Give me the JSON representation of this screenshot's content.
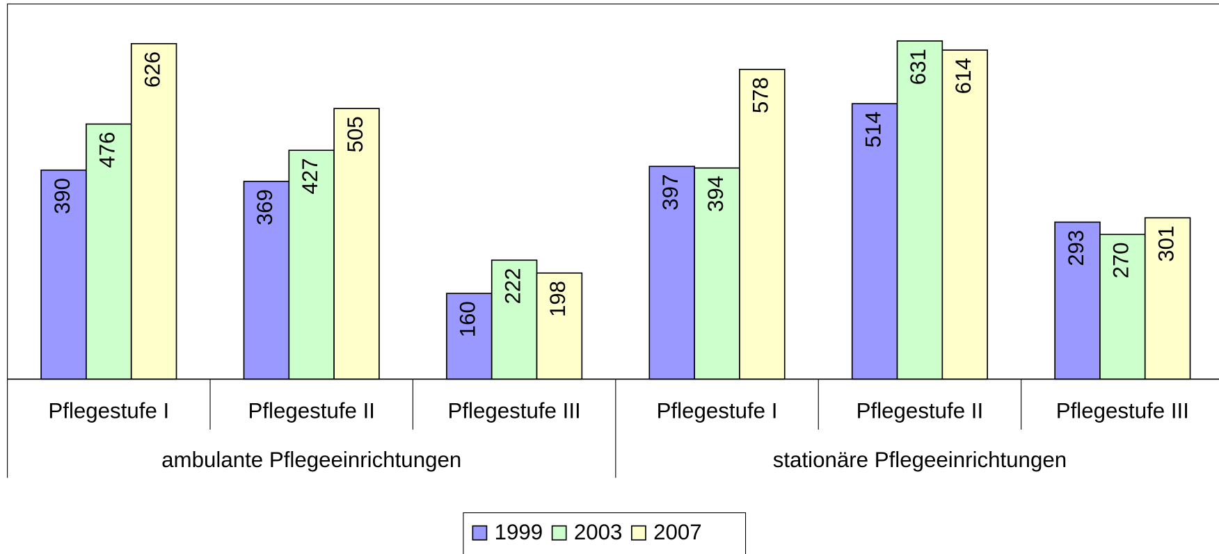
{
  "chart_data": {
    "type": "bar",
    "groups": [
      {
        "name": "ambulante Pflegeeinrichtungen",
        "categories": [
          "Pflegestufe I",
          "Pflegestufe II",
          "Pflegestufe III"
        ]
      },
      {
        "name": "stationäre Pflegeeinrichtungen",
        "categories": [
          "Pflegestufe I",
          "Pflegestufe II",
          "Pflegestufe III"
        ]
      }
    ],
    "series": [
      {
        "name": "1999",
        "color": "#9999ff",
        "values": [
          390,
          369,
          160,
          397,
          514,
          293
        ]
      },
      {
        "name": "2003",
        "color": "#ccffcc",
        "values": [
          476,
          427,
          222,
          394,
          631,
          270
        ]
      },
      {
        "name": "2007",
        "color": "#ffffcc",
        "values": [
          626,
          505,
          198,
          578,
          614,
          301
        ]
      }
    ],
    "ylim": [
      0,
      700
    ],
    "legend": "bottom"
  }
}
